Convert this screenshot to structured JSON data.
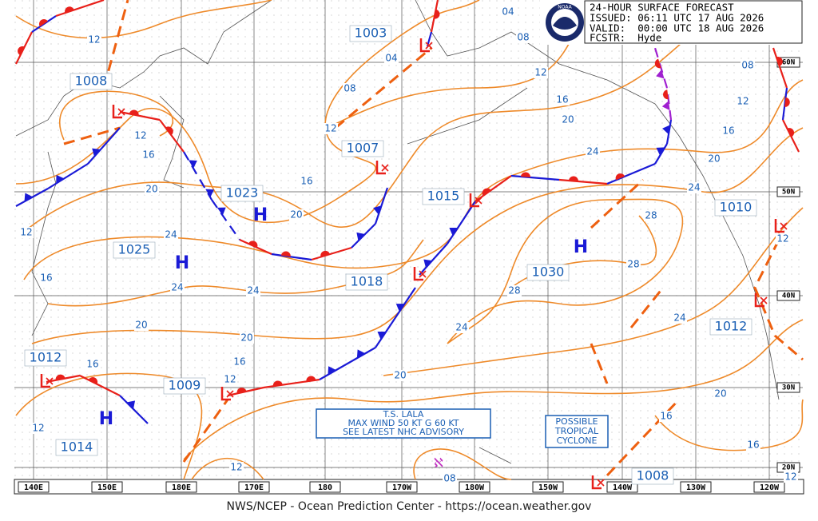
{
  "header": {
    "lines": [
      "24-HOUR SURFACE FORECAST",
      "ISSUED: 06:11 UTC 17 AUG 2026",
      "VALID:  00:00 UTC 18 AUG 2026",
      "FCSTR:  Hyde"
    ],
    "logo": "NOAA"
  },
  "footer": "NWS/NCEP - Ocean Prediction Center - https://ocean.weather.gov",
  "lon_labels": [
    "140E",
    "150E",
    "180E",
    "170E",
    "180",
    "170W",
    "180W",
    "150W",
    "140W",
    "130W",
    "120W"
  ],
  "lat_labels": [
    "60N",
    "50N",
    "40N",
    "30N",
    "20N"
  ],
  "pressure_labels": [
    1003,
    1008,
    1007,
    1023,
    1015,
    1025,
    1018,
    1030,
    1010,
    1012,
    1012,
    1009,
    1014,
    1008
  ],
  "high_symbols": [
    "H",
    "H",
    "H",
    "H"
  ],
  "isobar_labels": [
    "04",
    "08",
    "04",
    "08",
    "12",
    "12",
    "16",
    "20",
    "08",
    "12",
    "16",
    "20",
    "24",
    "12",
    "12",
    "16",
    "16",
    "20",
    "20",
    "24",
    "24",
    "24",
    "24",
    "28",
    "28",
    "28",
    "12",
    "16",
    "20",
    "20",
    "16",
    "16",
    "12",
    "24",
    "24",
    "20",
    "20",
    "16",
    "16",
    "12",
    "12",
    "08",
    "12",
    "12"
  ],
  "storm_note": [
    "T.S. LALA",
    "MAX WIND 50 KT G 60 KT",
    "SEE LATEST NHC ADVISORY"
  ],
  "tropical_note": [
    "POSSIBLE",
    "TROPICAL",
    "CYCLONE"
  ]
}
